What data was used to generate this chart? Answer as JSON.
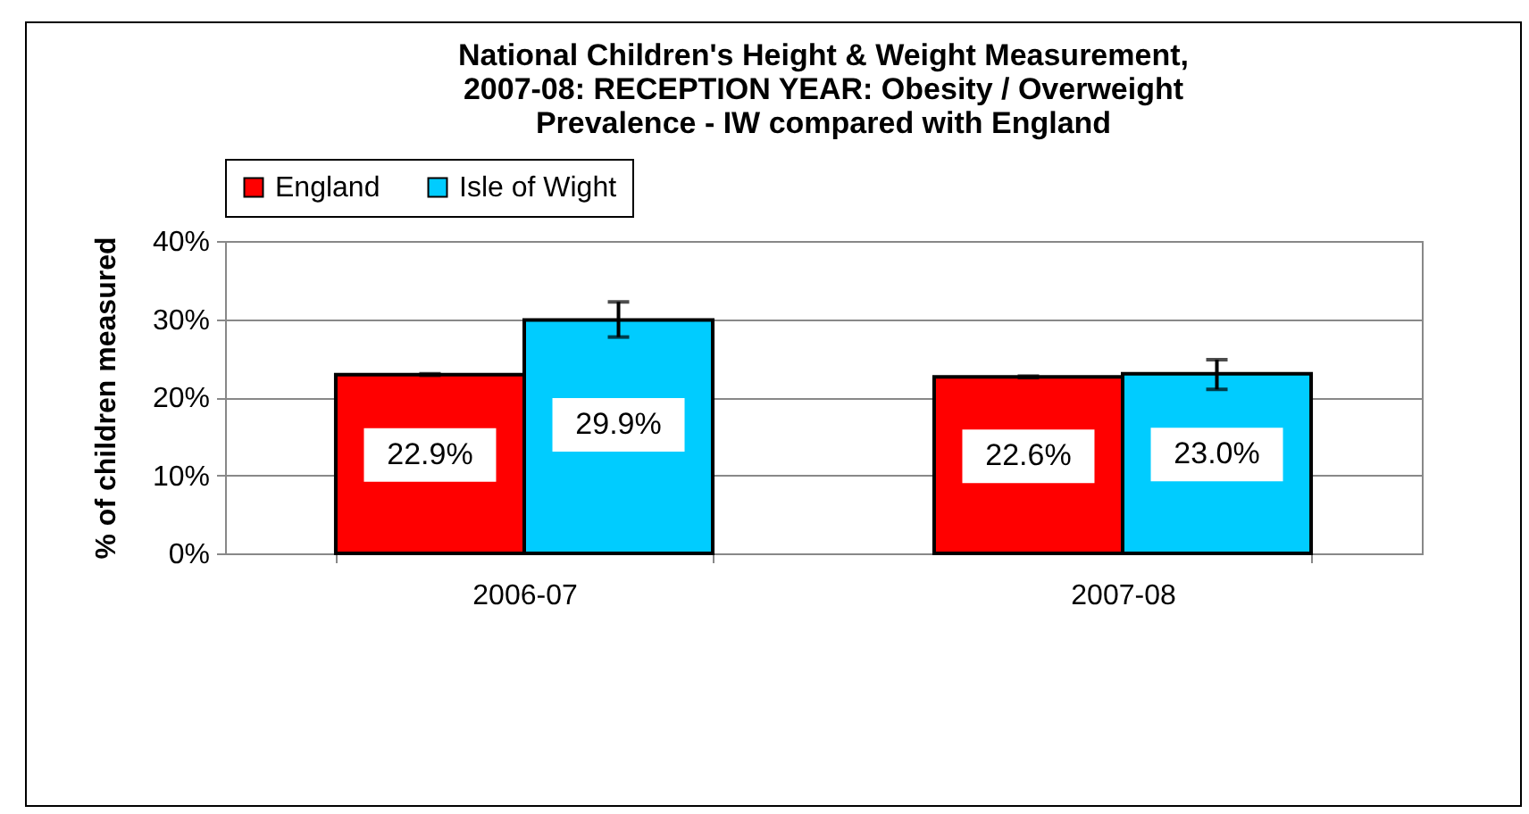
{
  "chart_data": {
    "type": "bar",
    "title": "National Children's Height & Weight Measurement,\n2007-08: RECEPTION YEAR: Obesity / Overweight\nPrevalence - IW compared with England",
    "ylabel": "% of children measured",
    "categories": [
      "2006-07",
      "2007-08"
    ],
    "series": [
      {
        "name": "England",
        "color": "#ff0000",
        "values": [
          22.9,
          22.6
        ],
        "errors": [
          0.1,
          0.1
        ],
        "value_labels": [
          "22.9%",
          "22.6%"
        ]
      },
      {
        "name": "Isle of Wight",
        "color": "#00ccff",
        "values": [
          29.9,
          23.0
        ],
        "errors": [
          [
            27.7,
            32.2
          ],
          [
            21.0,
            24.8
          ]
        ],
        "value_labels": [
          "29.9%",
          "23.0%"
        ]
      }
    ],
    "ylim": [
      0,
      40
    ],
    "yticks": [
      {
        "value": 0,
        "label": "0%"
      },
      {
        "value": 10,
        "label": "10%"
      },
      {
        "value": 20,
        "label": "20%"
      },
      {
        "value": 30,
        "label": "30%"
      },
      {
        "value": 40,
        "label": "40%"
      }
    ],
    "grid": "y",
    "legend": "top"
  }
}
